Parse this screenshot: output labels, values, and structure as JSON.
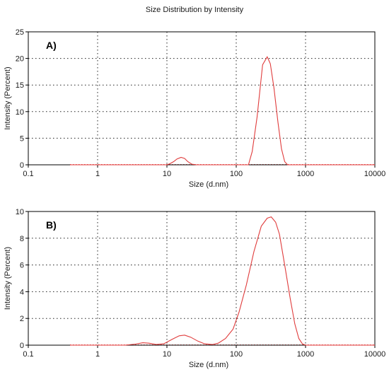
{
  "title": "Size Distribution by Intensity",
  "colors": {
    "series": "#e03c3c",
    "grid": "#222222",
    "text": "#1a1a1a"
  },
  "chart_data": [
    {
      "type": "line",
      "panel_label": "A)",
      "xlabel": "Size (d.nm)",
      "ylabel": "Intensity (Percent)",
      "xscale": "log",
      "xlim": [
        0.1,
        10000
      ],
      "ylim": [
        0,
        25
      ],
      "x_ticks": [
        0.1,
        1,
        10,
        100,
        1000,
        10000
      ],
      "x_tick_labels": [
        "0.1",
        "1",
        "10",
        "100",
        "1000",
        "10000"
      ],
      "y_ticks": [
        0,
        5,
        10,
        15,
        20,
        25
      ],
      "y_tick_labels": [
        "0",
        "5",
        "10",
        "15",
        "20",
        "25"
      ],
      "grid": true,
      "x_range_shown": [
        0.4,
        10000
      ],
      "series": [
        {
          "x": [
            0.4,
            10,
            11,
            12.5,
            14,
            16,
            18,
            20,
            23,
            27,
            120,
            150,
            170,
            200,
            240,
            280,
            310,
            350,
            400,
            450,
            500,
            550,
            10000
          ],
          "y": [
            0,
            0,
            0.2,
            0.6,
            1.1,
            1.4,
            1.2,
            0.6,
            0.1,
            0,
            0,
            0,
            2.5,
            9,
            18.8,
            20.3,
            19,
            14.5,
            8,
            3,
            0.6,
            0,
            0
          ]
        }
      ]
    },
    {
      "type": "line",
      "panel_label": "B)",
      "xlabel": "Size (d.nm)",
      "ylabel": "Intensity (Percent)",
      "xscale": "log",
      "xlim": [
        0.1,
        10000
      ],
      "ylim": [
        0,
        10
      ],
      "x_ticks": [
        0.1,
        1,
        10,
        100,
        1000,
        10000
      ],
      "x_tick_labels": [
        "0.1",
        "1",
        "10",
        "100",
        "1000",
        "10000"
      ],
      "y_ticks": [
        0,
        2,
        4,
        6,
        8,
        10
      ],
      "y_tick_labels": [
        "0",
        "2",
        "4",
        "6",
        "8",
        "10"
      ],
      "grid": true,
      "x_range_shown": [
        0.4,
        10000
      ],
      "series": [
        {
          "x": [
            0.4,
            2.5,
            3.5,
            4.5,
            5.5,
            7,
            9,
            12,
            15,
            18,
            22,
            28,
            35,
            45,
            55,
            70,
            90,
            110,
            140,
            180,
            230,
            280,
            320,
            370,
            420,
            500,
            600,
            700,
            800,
            900,
            1000,
            1100,
            10000
          ],
          "y": [
            0,
            0,
            0.08,
            0.18,
            0.15,
            0.05,
            0.1,
            0.45,
            0.7,
            0.75,
            0.6,
            0.3,
            0.1,
            0.05,
            0.15,
            0.5,
            1.2,
            2.5,
            4.5,
            7.0,
            8.9,
            9.5,
            9.6,
            9.2,
            8.3,
            6.0,
            3.5,
            1.6,
            0.5,
            0.1,
            0,
            0,
            0
          ]
        }
      ]
    }
  ]
}
